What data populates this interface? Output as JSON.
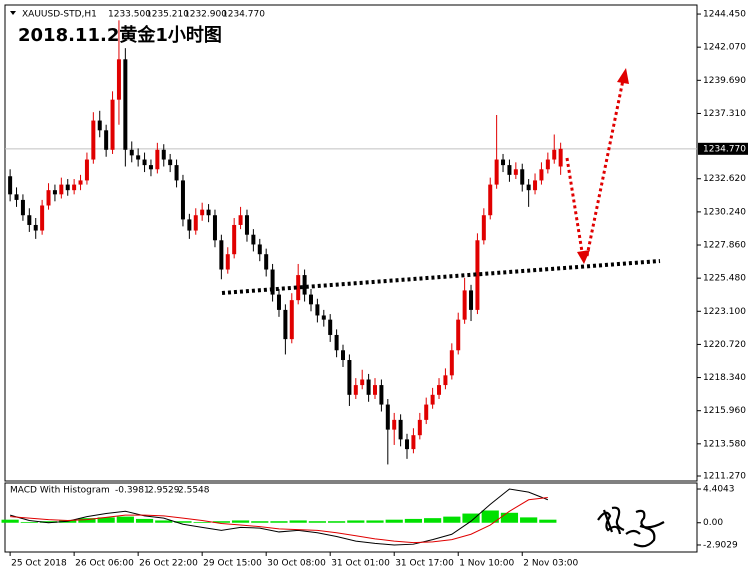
{
  "chart_data": [
    {
      "type": "candlestick",
      "symbol": "XAUUSD-STD,H1",
      "ohlc_labels": [
        "1233.500",
        "1235.210",
        "1232.900",
        "1234.770"
      ],
      "title": "2018.11.2黄金1小时图",
      "xlim": [
        -0.8,
        107.3
      ],
      "xticks": [
        {
          "value": 0,
          "label": "25 Oct 2018"
        },
        {
          "value": 10,
          "label": "26 Oct 06:00"
        },
        {
          "value": 20,
          "label": "26 Oct 22:00"
        },
        {
          "value": 30,
          "label": "29 Oct 15:00"
        },
        {
          "value": 40,
          "label": "30 Oct 08:00"
        },
        {
          "value": 50,
          "label": "31 Oct 01:00"
        },
        {
          "value": 60,
          "label": "31 Oct 17:00"
        },
        {
          "value": 70,
          "label": "1 Nov 10:00"
        },
        {
          "value": 80,
          "label": "2 Nov 03:00"
        }
      ],
      "ylim": [
        1210.91,
        1245.1
      ],
      "yticks": [
        {
          "value": 1244.45,
          "label": "1244.450"
        },
        {
          "value": 1242.07,
          "label": "1242.070"
        },
        {
          "value": 1239.69,
          "label": "1239.690"
        },
        {
          "value": 1237.31,
          "label": "1237.310"
        },
        {
          "value": 1232.62,
          "label": "1232.620"
        },
        {
          "value": 1230.24,
          "label": "1230.240"
        },
        {
          "value": 1227.86,
          "label": "1227.860"
        },
        {
          "value": 1225.48,
          "label": "1225.480"
        },
        {
          "value": 1223.1,
          "label": "1223.100"
        },
        {
          "value": 1220.72,
          "label": "1220.720"
        },
        {
          "value": 1218.34,
          "label": "1218.340"
        },
        {
          "value": 1215.96,
          "label": "1215.960"
        },
        {
          "value": 1213.58,
          "label": "1213.580"
        },
        {
          "value": 1211.27,
          "label": "1211.270"
        }
      ],
      "current_price": {
        "value": 1234.77,
        "label": "1234.770"
      },
      "up_color": "#e00000",
      "down_color": "#000000",
      "candles": [
        [
          1232.8,
          1233.3,
          1231.0,
          1231.5
        ],
        [
          1231.5,
          1232.0,
          1230.6,
          1231.1
        ],
        [
          1231.1,
          1231.5,
          1229.6,
          1230.0
        ],
        [
          1230.0,
          1230.5,
          1228.8,
          1229.3
        ],
        [
          1229.3,
          1229.8,
          1228.3,
          1228.9
        ],
        [
          1228.9,
          1231.1,
          1228.6,
          1230.7
        ],
        [
          1230.7,
          1232.3,
          1230.4,
          1231.8
        ],
        [
          1231.8,
          1232.2,
          1231.0,
          1231.5
        ],
        [
          1231.5,
          1232.7,
          1231.2,
          1232.2
        ],
        [
          1232.2,
          1232.6,
          1231.4,
          1231.8
        ],
        [
          1231.8,
          1232.6,
          1231.5,
          1232.2
        ],
        [
          1232.2,
          1232.9,
          1231.8,
          1232.5
        ],
        [
          1232.5,
          1234.5,
          1232.2,
          1234.0
        ],
        [
          1234.0,
          1237.4,
          1233.7,
          1236.8
        ],
        [
          1236.8,
          1237.5,
          1235.6,
          1236.1
        ],
        [
          1236.1,
          1236.5,
          1234.2,
          1234.7
        ],
        [
          1234.7,
          1238.9,
          1234.4,
          1238.3
        ],
        [
          1238.3,
          1244.0,
          1236.5,
          1241.2
        ],
        [
          1241.2,
          1242.0,
          1233.5,
          1234.7
        ],
        [
          1234.7,
          1235.3,
          1233.8,
          1234.3
        ],
        [
          1234.3,
          1234.8,
          1233.5,
          1234.0
        ],
        [
          1234.0,
          1234.5,
          1233.1,
          1233.6
        ],
        [
          1233.6,
          1234.0,
          1232.8,
          1233.3
        ],
        [
          1233.3,
          1235.2,
          1233.0,
          1234.7
        ],
        [
          1234.7,
          1235.1,
          1233.5,
          1234.0
        ],
        [
          1234.0,
          1234.4,
          1233.1,
          1233.6
        ],
        [
          1233.6,
          1234.0,
          1232.0,
          1232.5
        ],
        [
          1232.5,
          1232.9,
          1229.2,
          1229.7
        ],
        [
          1229.7,
          1230.1,
          1228.3,
          1228.9
        ],
        [
          1228.9,
          1230.5,
          1228.6,
          1230.0
        ],
        [
          1230.0,
          1230.9,
          1229.6,
          1230.4
        ],
        [
          1230.4,
          1230.8,
          1229.5,
          1230.0
        ],
        [
          1230.0,
          1230.4,
          1227.7,
          1228.2
        ],
        [
          1228.2,
          1228.6,
          1225.4,
          1226.1
        ],
        [
          1226.1,
          1227.7,
          1225.8,
          1227.2
        ],
        [
          1227.2,
          1229.8,
          1226.9,
          1229.3
        ],
        [
          1229.3,
          1230.6,
          1229.0,
          1230.0
        ],
        [
          1230.0,
          1230.4,
          1228.1,
          1228.6
        ],
        [
          1228.6,
          1229.0,
          1227.4,
          1227.9
        ],
        [
          1227.9,
          1228.3,
          1226.7,
          1227.2
        ],
        [
          1227.2,
          1227.6,
          1225.6,
          1226.1
        ],
        [
          1226.1,
          1226.5,
          1223.8,
          1224.3
        ],
        [
          1224.3,
          1224.7,
          1222.7,
          1223.2
        ],
        [
          1223.2,
          1223.6,
          1220.0,
          1221.1
        ],
        [
          1221.1,
          1224.4,
          1220.8,
          1223.9
        ],
        [
          1223.9,
          1226.5,
          1223.6,
          1225.7
        ],
        [
          1225.7,
          1226.1,
          1223.8,
          1224.3
        ],
        [
          1224.3,
          1224.7,
          1223.1,
          1223.6
        ],
        [
          1223.6,
          1224.0,
          1222.3,
          1222.8
        ],
        [
          1222.8,
          1223.2,
          1222.0,
          1222.5
        ],
        [
          1222.5,
          1222.9,
          1220.9,
          1221.4
        ],
        [
          1221.4,
          1221.8,
          1219.8,
          1220.3
        ],
        [
          1220.3,
          1220.7,
          1219.1,
          1219.6
        ],
        [
          1219.6,
          1220.0,
          1216.3,
          1217.1
        ],
        [
          1217.1,
          1218.3,
          1216.8,
          1217.8
        ],
        [
          1217.8,
          1218.9,
          1217.5,
          1218.2
        ],
        [
          1218.2,
          1218.6,
          1216.6,
          1217.1
        ],
        [
          1217.1,
          1218.3,
          1216.8,
          1217.8
        ],
        [
          1217.8,
          1218.2,
          1215.9,
          1216.4
        ],
        [
          1216.4,
          1216.8,
          1212.1,
          1214.6
        ],
        [
          1214.6,
          1215.8,
          1213.5,
          1215.3
        ],
        [
          1215.3,
          1215.7,
          1213.4,
          1213.9
        ],
        [
          1213.9,
          1214.3,
          1212.5,
          1213.2
        ],
        [
          1213.2,
          1214.7,
          1212.9,
          1214.2
        ],
        [
          1214.2,
          1215.8,
          1213.9,
          1215.3
        ],
        [
          1215.3,
          1216.9,
          1215.0,
          1216.4
        ],
        [
          1216.4,
          1217.6,
          1216.1,
          1217.1
        ],
        [
          1217.1,
          1218.3,
          1216.8,
          1217.8
        ],
        [
          1217.8,
          1219.0,
          1217.5,
          1218.5
        ],
        [
          1218.5,
          1220.8,
          1218.2,
          1220.3
        ],
        [
          1220.3,
          1223.0,
          1220.0,
          1222.5
        ],
        [
          1222.5,
          1225.5,
          1222.2,
          1224.6
        ],
        [
          1224.6,
          1225.0,
          1222.4,
          1223.2
        ],
        [
          1223.2,
          1228.7,
          1222.9,
          1228.2
        ],
        [
          1228.2,
          1230.5,
          1227.9,
          1230.0
        ],
        [
          1230.0,
          1232.7,
          1229.7,
          1232.2
        ],
        [
          1232.2,
          1237.2,
          1231.9,
          1234.0
        ],
        [
          1234.0,
          1234.4,
          1233.1,
          1233.6
        ],
        [
          1233.6,
          1234.0,
          1232.4,
          1232.9
        ],
        [
          1232.9,
          1233.8,
          1232.6,
          1233.3
        ],
        [
          1233.3,
          1233.7,
          1231.7,
          1232.2
        ],
        [
          1232.2,
          1232.6,
          1230.6,
          1231.8
        ],
        [
          1231.8,
          1233.0,
          1231.5,
          1232.5
        ],
        [
          1232.5,
          1233.8,
          1232.2,
          1233.3
        ],
        [
          1233.3,
          1234.5,
          1233.0,
          1234.0
        ],
        [
          1234.0,
          1235.8,
          1233.7,
          1234.7
        ],
        [
          1233.5,
          1235.21,
          1232.9,
          1234.77
        ]
      ]
    },
    {
      "type": "macd",
      "title": "MACD With Histogram",
      "value_labels": [
        "-0.3981",
        "2.9529",
        "2.5548"
      ],
      "xlim": [
        -0.8,
        107.3
      ],
      "ylim": [
        -3.82,
        5.19
      ],
      "yticks": [
        4.4043,
        {
          "value": 0,
          "label": "0.00"
        },
        -2.9029
      ],
      "x": [
        0,
        3,
        6,
        9,
        12,
        15,
        18,
        21,
        24,
        27,
        30,
        33,
        36,
        39,
        42,
        45,
        48,
        51,
        54,
        57,
        60,
        63,
        66,
        69,
        72,
        75,
        78,
        81,
        84
      ],
      "histogram": {
        "color": "#00e000",
        "values": [
          0.4,
          0.1,
          0.2,
          0.3,
          0.6,
          0.7,
          0.8,
          0.5,
          0.3,
          0.2,
          0.1,
          0.2,
          0.3,
          0.2,
          0.2,
          0.3,
          0.2,
          0.2,
          0.3,
          0.3,
          0.4,
          0.5,
          0.6,
          0.8,
          1.2,
          1.6,
          1.3,
          0.7,
          0.4
        ]
      },
      "series": [
        {
          "color": "#000000",
          "values": [
            1.0,
            0.3,
            0.0,
            0.2,
            0.8,
            1.2,
            1.5,
            0.9,
            0.6,
            -0.2,
            -0.6,
            -1.0,
            -0.6,
            -0.7,
            -1.2,
            -1.0,
            -1.3,
            -1.8,
            -2.4,
            -2.7,
            -2.9,
            -2.8,
            -2.2,
            -1.5,
            0.2,
            2.4,
            4.4,
            4.0,
            3.0
          ]
        },
        {
          "color": "#e00000",
          "values": [
            0.8,
            0.6,
            0.4,
            0.3,
            0.4,
            0.7,
            1.0,
            1.0,
            0.9,
            0.6,
            0.3,
            -0.1,
            -0.3,
            -0.5,
            -0.8,
            -0.9,
            -1.0,
            -1.3,
            -1.7,
            -2.1,
            -2.4,
            -2.6,
            -2.5,
            -2.2,
            -1.5,
            -0.3,
            1.5,
            3.0,
            3.3
          ]
        }
      ]
    }
  ]
}
